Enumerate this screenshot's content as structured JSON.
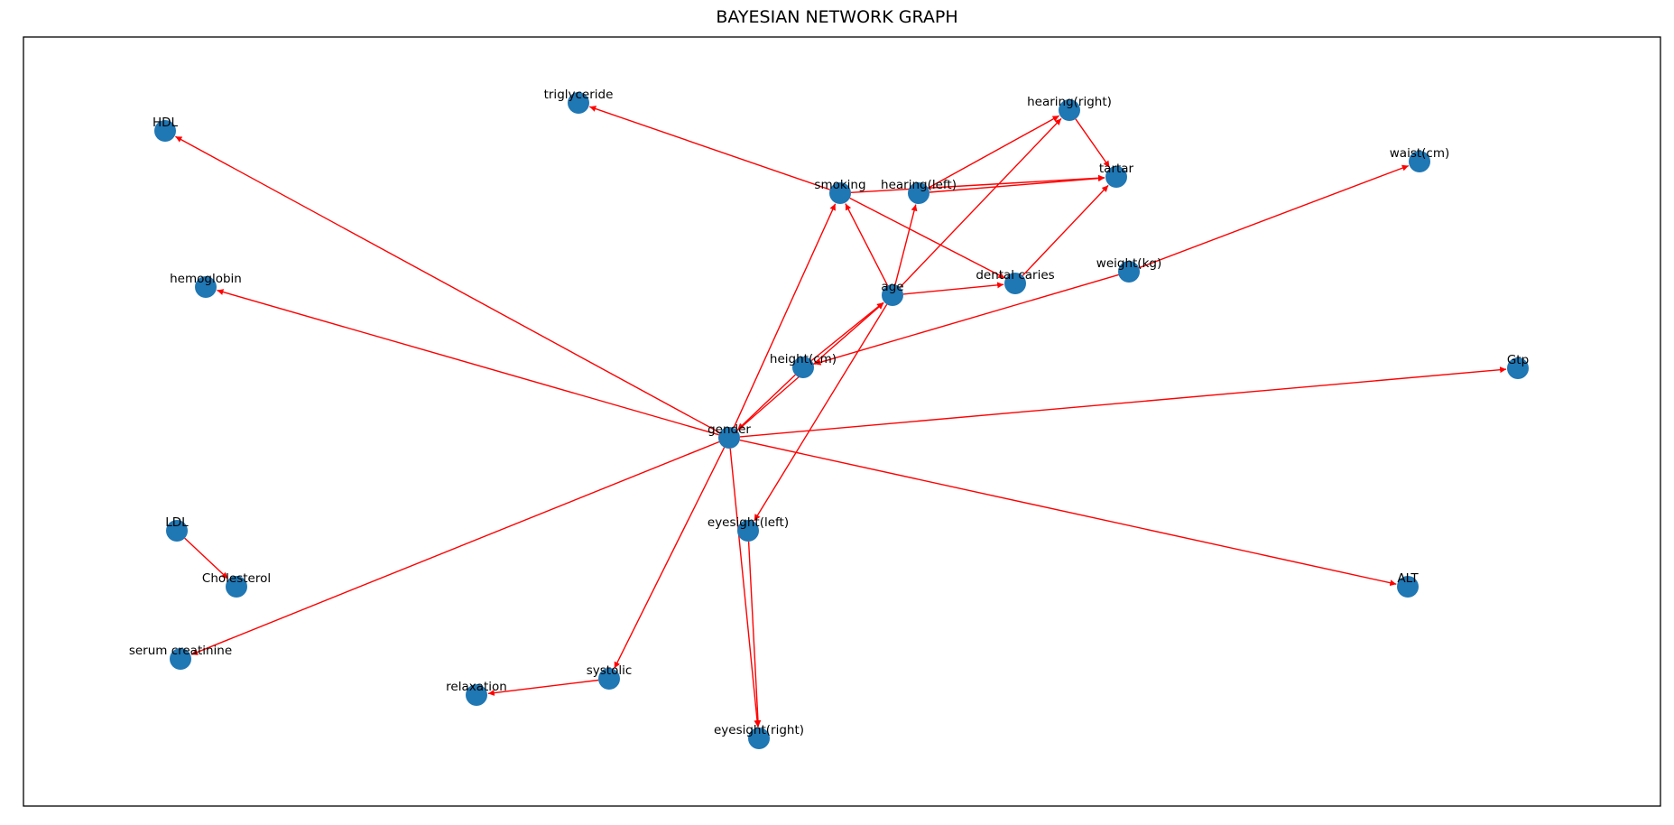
{
  "title": "BAYESIAN NETWORK GRAPH",
  "colors": {
    "edge": "#ff0000",
    "node": "#1f77b4",
    "frame": "#000000",
    "background": "#ffffff"
  },
  "nodes": [
    {
      "id": "triglyceride",
      "label": "triglyceride"
    },
    {
      "id": "hearing_right",
      "label": "hearing(right)"
    },
    {
      "id": "HDL",
      "label": "HDL"
    },
    {
      "id": "tartar",
      "label": "tartar"
    },
    {
      "id": "waist",
      "label": "waist(cm)"
    },
    {
      "id": "smoking",
      "label": "smoking"
    },
    {
      "id": "hearing_left",
      "label": "hearing(left)"
    },
    {
      "id": "hemoglobin",
      "label": "hemoglobin"
    },
    {
      "id": "dental_caries",
      "label": "dental caries"
    },
    {
      "id": "weight",
      "label": "weight(kg)"
    },
    {
      "id": "age",
      "label": "age"
    },
    {
      "id": "height",
      "label": "height(cm)"
    },
    {
      "id": "Gtp",
      "label": "Gtp"
    },
    {
      "id": "gender",
      "label": "gender"
    },
    {
      "id": "eyesight_left",
      "label": "eyesight(left)"
    },
    {
      "id": "LDL",
      "label": "LDL"
    },
    {
      "id": "Cholesterol",
      "label": "Cholesterol"
    },
    {
      "id": "ALT",
      "label": "ALT"
    },
    {
      "id": "serum_creatinine",
      "label": "serum creatinine"
    },
    {
      "id": "systolic",
      "label": "systolic"
    },
    {
      "id": "relaxation",
      "label": "relaxation"
    },
    {
      "id": "eyesight_right",
      "label": "eyesight(right)"
    }
  ],
  "edges": [
    {
      "from": "smoking",
      "to": "triglyceride"
    },
    {
      "from": "smoking",
      "to": "tartar"
    },
    {
      "from": "smoking",
      "to": "dental_caries"
    },
    {
      "from": "hearing_left",
      "to": "hearing_right"
    },
    {
      "from": "hearing_left",
      "to": "tartar"
    },
    {
      "from": "hearing_right",
      "to": "tartar"
    },
    {
      "from": "dental_caries",
      "to": "tartar"
    },
    {
      "from": "age",
      "to": "smoking"
    },
    {
      "from": "age",
      "to": "hearing_left"
    },
    {
      "from": "age",
      "to": "hearing_right"
    },
    {
      "from": "age",
      "to": "dental_caries"
    },
    {
      "from": "age",
      "to": "eyesight_left"
    },
    {
      "from": "height",
      "to": "age"
    },
    {
      "from": "height",
      "to": "gender"
    },
    {
      "from": "weight",
      "to": "waist"
    },
    {
      "from": "weight",
      "to": "height"
    },
    {
      "from": "gender",
      "to": "HDL"
    },
    {
      "from": "gender",
      "to": "hemoglobin"
    },
    {
      "from": "gender",
      "to": "smoking"
    },
    {
      "from": "gender",
      "to": "age"
    },
    {
      "from": "gender",
      "to": "Gtp"
    },
    {
      "from": "gender",
      "to": "ALT"
    },
    {
      "from": "gender",
      "to": "serum_creatinine"
    },
    {
      "from": "gender",
      "to": "systolic"
    },
    {
      "from": "gender",
      "to": "eyesight_right"
    },
    {
      "from": "eyesight_left",
      "to": "eyesight_right"
    },
    {
      "from": "LDL",
      "to": "Cholesterol"
    },
    {
      "from": "systolic",
      "to": "relaxation"
    }
  ]
}
